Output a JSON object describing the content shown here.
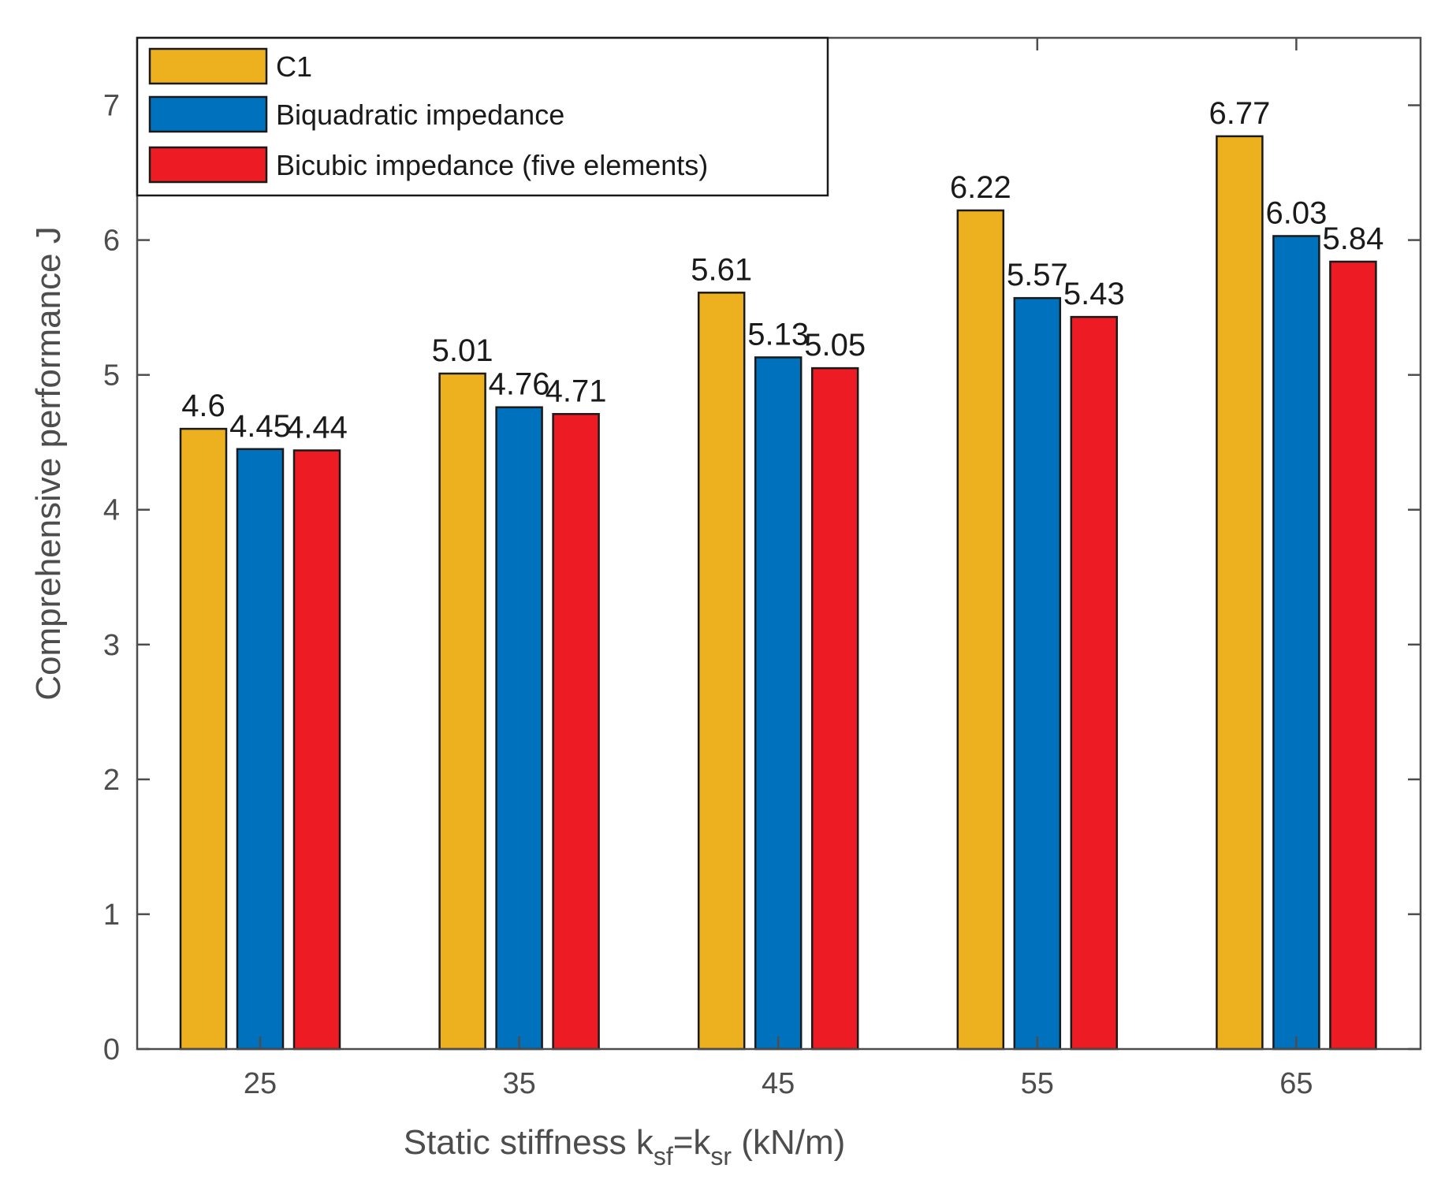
{
  "chart_data": {
    "type": "bar",
    "categories": [
      "25",
      "35",
      "45",
      "55",
      "65"
    ],
    "series": [
      {
        "name": "C1",
        "values": [
          4.6,
          5.01,
          5.61,
          6.22,
          6.77
        ],
        "color": "#EDB120"
      },
      {
        "name": "Biquadratic impedance",
        "values": [
          4.45,
          4.76,
          5.13,
          5.57,
          6.03
        ],
        "color": "#0072BD"
      },
      {
        "name": "Bicubic impedance (five elements)",
        "values": [
          4.44,
          4.71,
          5.05,
          5.43,
          5.84
        ],
        "color": "#ED1C24"
      }
    ],
    "data_labels": [
      [
        "4.6",
        "5.01",
        "5.61",
        "6.22",
        "6.77"
      ],
      [
        "4.45",
        "4.76",
        "5.13",
        "5.57",
        "6.03"
      ],
      [
        "4.44",
        "4.71",
        "5.05",
        "5.43",
        "5.84"
      ]
    ],
    "ylim": [
      0,
      7.5
    ],
    "yticks": [
      "0",
      "1",
      "2",
      "3",
      "4",
      "5",
      "6",
      "7"
    ],
    "ylabel": "Comprehensive performance J",
    "xlabel": {
      "main": "Static stiffness k",
      "sub1": "sf",
      "mid": "=k",
      "sub2": "sr",
      "tail": " (kN/m)"
    },
    "grid": false,
    "legend_position": "top-left"
  }
}
